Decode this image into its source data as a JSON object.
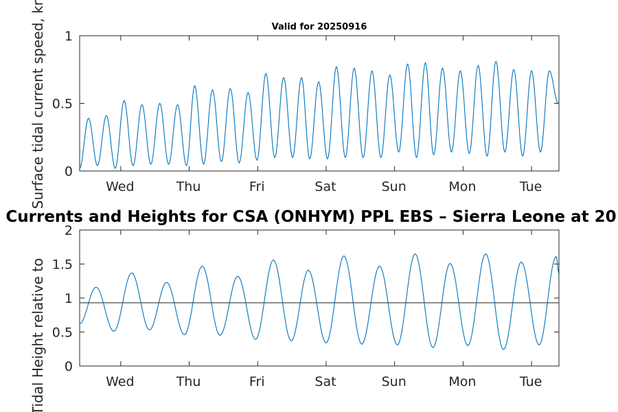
{
  "chart_data": [
    {
      "type": "line",
      "title": "Valid for 20250916",
      "ylabel": "Surface tidal current speed, kn",
      "ylim": [
        0,
        1
      ],
      "yticks": [
        0,
        0.5,
        1
      ],
      "yticklabels": [
        "0",
        "0.5",
        "1"
      ],
      "xlim": [
        0,
        7
      ],
      "xticks": [
        0.6,
        1.6,
        2.6,
        3.6,
        4.6,
        5.6,
        6.6
      ],
      "xticklabels": [
        "Wed",
        "Thu",
        "Fri",
        "Sat",
        "Sun",
        "Mon",
        "Tue"
      ],
      "color": "#0072BD",
      "series": [
        {
          "peaks_x": [
            0.13,
            0.39,
            0.65,
            0.91,
            1.17,
            1.43,
            1.68,
            1.94,
            2.2,
            2.46,
            2.72,
            2.98,
            3.24,
            3.49,
            3.75,
            4.01,
            4.27,
            4.53,
            4.79,
            5.05,
            5.3,
            5.56,
            5.82,
            6.08,
            6.34,
            6.6,
            6.86
          ],
          "peaks_y": [
            0.39,
            0.41,
            0.52,
            0.49,
            0.5,
            0.49,
            0.63,
            0.6,
            0.61,
            0.58,
            0.72,
            0.69,
            0.69,
            0.66,
            0.77,
            0.76,
            0.74,
            0.71,
            0.79,
            0.8,
            0.76,
            0.74,
            0.78,
            0.81,
            0.75,
            0.74,
            0.74
          ],
          "troughs_x": [
            0.0,
            0.26,
            0.52,
            0.78,
            1.04,
            1.3,
            1.56,
            1.81,
            2.07,
            2.33,
            2.59,
            2.85,
            3.11,
            3.36,
            3.62,
            3.88,
            4.14,
            4.4,
            4.66,
            4.92,
            5.17,
            5.43,
            5.69,
            5.95,
            6.21,
            6.47,
            6.73,
            6.99
          ],
          "troughs_y": [
            0.02,
            0.04,
            0.02,
            0.04,
            0.05,
            0.05,
            0.04,
            0.05,
            0.07,
            0.06,
            0.08,
            0.1,
            0.1,
            0.09,
            0.09,
            0.1,
            0.1,
            0.1,
            0.14,
            0.1,
            0.12,
            0.14,
            0.13,
            0.11,
            0.14,
            0.11,
            0.14,
            0.5
          ]
        }
      ]
    },
    {
      "type": "line",
      "title": "Currents and Heights for CSA (ONHYM) PPL EBS  – Sierra Leone at 20",
      "ylabel": "Tidal Height relative to",
      "ylim": [
        0,
        2
      ],
      "yticks": [
        0,
        0.5,
        1,
        1.5,
        2
      ],
      "yticklabels": [
        "0",
        "0.5",
        "1",
        "1.5",
        "2"
      ],
      "xlim": [
        0,
        7
      ],
      "xticks": [
        0.6,
        1.6,
        2.6,
        3.6,
        4.6,
        5.6,
        6.6
      ],
      "xticklabels": [
        "Wed",
        "Thu",
        "Fri",
        "Sat",
        "Sun",
        "Mon",
        "Tue"
      ],
      "color": "#0072BD",
      "hline": 0.93,
      "hline_color": "#333333",
      "series": [
        {
          "start_y": 0.62,
          "end_y": 1.36,
          "peaks_x": [
            0.24,
            0.76,
            1.27,
            1.79,
            2.31,
            2.83,
            3.34,
            3.86,
            4.38,
            4.9,
            5.41,
            5.93,
            6.45,
            6.96
          ],
          "peaks_y": [
            1.16,
            1.37,
            1.23,
            1.47,
            1.32,
            1.56,
            1.41,
            1.62,
            1.47,
            1.65,
            1.51,
            1.65,
            1.53,
            1.61
          ],
          "troughs_x": [
            0.5,
            1.02,
            1.53,
            2.05,
            2.57,
            3.09,
            3.6,
            4.12,
            4.64,
            5.16,
            5.67,
            6.19,
            6.71
          ],
          "troughs_y": [
            0.51,
            0.53,
            0.46,
            0.45,
            0.39,
            0.37,
            0.34,
            0.32,
            0.31,
            0.27,
            0.3,
            0.24,
            0.31
          ]
        }
      ]
    }
  ]
}
